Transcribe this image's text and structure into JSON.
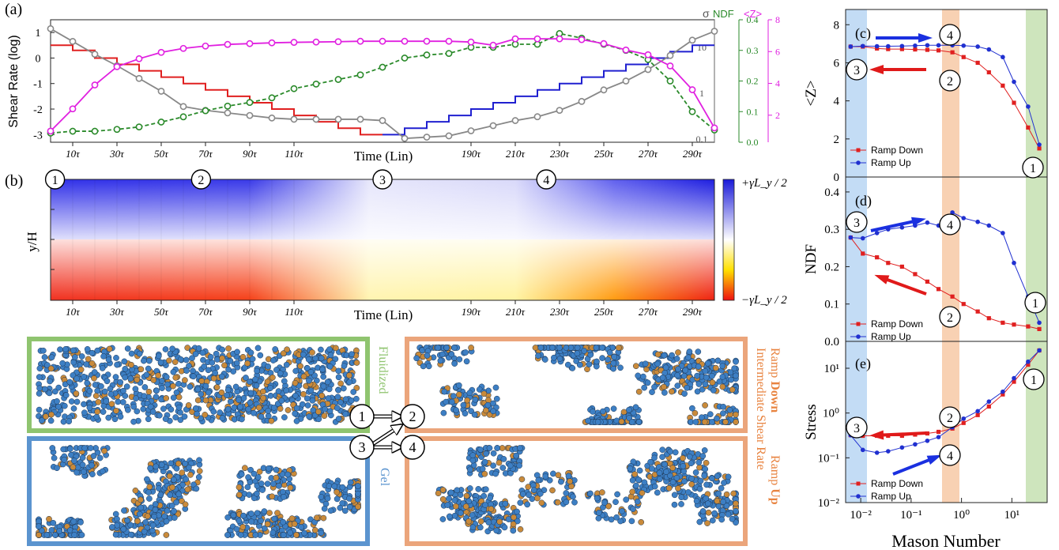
{
  "panel_a": {
    "tag": "(a)",
    "ylabel_left": "Shear Rate (log)",
    "right_axes": {
      "sigma_label": "σ",
      "ndf_label": "NDF",
      "z_label": "<Z>"
    },
    "left_ticks": [
      "1",
      "0",
      "-1",
      "-2",
      "-3"
    ],
    "sigma_ticks": [
      "10",
      "1",
      "0.1"
    ],
    "ndf_ticks": [
      "0.4",
      "0.3",
      "0.2",
      "0.1",
      "0.0"
    ],
    "z_ticks": [
      "8",
      "6",
      "4",
      "2"
    ],
    "xlabel": "Time (Lin)",
    "xticks": [
      "10τ",
      "30τ",
      "50τ",
      "70τ",
      "90τ",
      "110τ",
      "190τ",
      "210τ",
      "230τ",
      "250τ",
      "270τ",
      "290τ"
    ]
  },
  "panel_b": {
    "tag": "(b)",
    "ylabel": "y/H",
    "xlabel": "Time (Lin)",
    "xticks": [
      "10τ",
      "30τ",
      "50τ",
      "70τ",
      "90τ",
      "110τ",
      "190τ",
      "210τ",
      "230τ",
      "250τ",
      "270τ",
      "290τ"
    ],
    "colorbar_top": "+γ̇L_y / 2",
    "colorbar_bottom": "−γ̇L_y / 2",
    "markers": [
      "1",
      "2",
      "3",
      "4"
    ]
  },
  "snapshots": {
    "fluidized": "Fluidized",
    "gel": "Gel",
    "intermediate": "Intermediate Shear Rate",
    "ramp_down_prefix": "Ramp ",
    "ramp_down_bold": "Down",
    "ramp_up_prefix": "Ramp ",
    "ramp_up_bold": "Up",
    "flow": [
      "1",
      "2",
      "3",
      "4"
    ],
    "colors": {
      "green": "#8fc46f",
      "blue": "#5b94cf",
      "orange": "#eba57b"
    }
  },
  "chart_data": [
    {
      "type": "line",
      "panel": "(a)",
      "xlabel": "Time (Lin)",
      "ylabel": "Shear Rate (log)",
      "xlim": [
        0,
        300
      ],
      "series": [
        {
          "name": "shear_rate",
          "color": "#e02020",
          "x": [
            0,
            10,
            20,
            30,
            40,
            50,
            60,
            70,
            80,
            90,
            100,
            110,
            120,
            130,
            140,
            150
          ],
          "values": [
            0.5,
            0.3,
            0.0,
            -0.25,
            -0.5,
            -0.75,
            -1.0,
            -1.25,
            -1.5,
            -1.75,
            -2.0,
            -2.25,
            -2.5,
            -2.75,
            -3.0,
            -3.0
          ]
        },
        {
          "name": "shear_rate_up",
          "color": "#2020d0",
          "x": [
            150,
            160,
            170,
            180,
            190,
            200,
            210,
            220,
            230,
            240,
            250,
            260,
            270,
            280,
            290,
            300
          ],
          "values": [
            -3.0,
            -2.75,
            -2.5,
            -2.25,
            -2.0,
            -1.75,
            -1.5,
            -1.25,
            -1.0,
            -0.75,
            -0.5,
            -0.25,
            0.0,
            0.25,
            0.5,
            0.75
          ]
        },
        {
          "name": "sigma",
          "color": "#888888",
          "x": [
            0,
            10,
            20,
            30,
            40,
            50,
            60,
            70,
            80,
            90,
            100,
            110,
            120,
            130,
            140,
            150,
            160,
            170,
            180,
            190,
            200,
            210,
            220,
            230,
            240,
            250,
            260,
            270,
            280,
            290,
            300
          ],
          "values": [
            1.15,
            0.65,
            0.15,
            -0.3,
            -0.8,
            -1.3,
            -1.9,
            -2.05,
            -2.15,
            -2.25,
            -2.35,
            -2.4,
            -2.4,
            -2.4,
            -2.4,
            -2.45,
            -3.15,
            -3.1,
            -3.05,
            -2.85,
            -2.65,
            -2.45,
            -2.3,
            -2.05,
            -1.7,
            -1.25,
            -0.9,
            -0.45,
            0.1,
            0.7,
            1.05
          ]
        },
        {
          "name": "NDF",
          "color": "#2a8a2a",
          "x": [
            0,
            10,
            20,
            30,
            40,
            50,
            60,
            70,
            80,
            90,
            100,
            110,
            120,
            130,
            140,
            150,
            160,
            170,
            180,
            190,
            200,
            210,
            220,
            230,
            240,
            250,
            260,
            270,
            280,
            290,
            300
          ],
          "values": [
            0.03,
            0.036,
            0.036,
            0.042,
            0.05,
            0.066,
            0.083,
            0.103,
            0.118,
            0.13,
            0.145,
            0.175,
            0.19,
            0.205,
            0.22,
            0.245,
            0.275,
            0.285,
            0.29,
            0.31,
            0.31,
            0.32,
            0.32,
            0.355,
            0.34,
            0.32,
            0.3,
            0.27,
            0.2,
            0.1,
            0.04
          ]
        },
        {
          "name": "<Z>",
          "color": "#e020e0",
          "x": [
            0,
            10,
            20,
            30,
            40,
            50,
            60,
            70,
            80,
            90,
            100,
            110,
            120,
            130,
            140,
            150,
            160,
            170,
            180,
            190,
            200,
            210,
            220,
            230,
            240,
            250,
            260,
            270,
            280,
            290,
            300
          ],
          "values": [
            1.0,
            2.4,
            3.9,
            5.05,
            5.55,
            5.95,
            6.2,
            6.35,
            6.45,
            6.5,
            6.55,
            6.58,
            6.6,
            6.62,
            6.65,
            6.65,
            6.65,
            6.65,
            6.65,
            6.6,
            6.4,
            6.8,
            6.8,
            6.8,
            6.75,
            6.5,
            6.1,
            5.8,
            5.1,
            3.6,
            1.2
          ]
        }
      ]
    },
    {
      "type": "line",
      "panel": "(c)",
      "ylabel": "<Z>",
      "ylim": [
        0,
        8
      ],
      "xlog": true,
      "series": [
        {
          "name": "Ramp Down",
          "color": "#e02020",
          "x": [
            0.0063,
            0.011,
            0.021,
            0.035,
            0.066,
            0.12,
            0.21,
            0.35,
            0.66,
            1.1,
            2.1,
            3.5,
            6.6,
            11,
            21,
            35
          ],
          "values": [
            6.85,
            6.85,
            6.75,
            6.72,
            6.72,
            6.7,
            6.68,
            6.65,
            6.55,
            6.3,
            6.0,
            5.5,
            4.8,
            3.9,
            2.6,
            1.5
          ]
        },
        {
          "name": "Ramp Up",
          "color": "#2030d0",
          "x": [
            0.0063,
            0.011,
            0.021,
            0.035,
            0.066,
            0.12,
            0.21,
            0.35,
            0.66,
            1.1,
            2.1,
            3.5,
            6.6,
            11,
            21,
            35
          ],
          "values": [
            6.85,
            6.88,
            6.87,
            6.87,
            6.88,
            6.9,
            6.92,
            6.92,
            6.92,
            6.9,
            6.85,
            6.7,
            6.3,
            5.0,
            3.7,
            1.7
          ]
        }
      ]
    },
    {
      "type": "line",
      "panel": "(d)",
      "ylabel": "NDF",
      "ylim": [
        0,
        0.45
      ],
      "xlog": true,
      "series": [
        {
          "name": "Ramp Down",
          "color": "#e02020",
          "x": [
            0.0063,
            0.011,
            0.021,
            0.035,
            0.066,
            0.12,
            0.21,
            0.35,
            0.66,
            1.1,
            2.1,
            3.5,
            6.6,
            11,
            21,
            35
          ],
          "values": [
            0.278,
            0.235,
            0.225,
            0.21,
            0.2,
            0.18,
            0.16,
            0.14,
            0.12,
            0.1,
            0.08,
            0.062,
            0.05,
            0.045,
            0.04,
            0.033
          ]
        },
        {
          "name": "Ramp Up",
          "color": "#2030d0",
          "x": [
            0.0063,
            0.011,
            0.021,
            0.035,
            0.066,
            0.12,
            0.21,
            0.35,
            0.66,
            1.1,
            2.1,
            3.5,
            6.6,
            11,
            21,
            35
          ],
          "values": [
            0.278,
            0.276,
            0.29,
            0.3,
            0.305,
            0.31,
            0.318,
            0.31,
            0.345,
            0.33,
            0.32,
            0.31,
            0.29,
            0.21,
            0.12,
            0.05
          ]
        }
      ]
    },
    {
      "type": "line",
      "panel": "(e)",
      "ylabel": "Stress",
      "xlabel": "Mason Number",
      "ylog": true,
      "xlog": true,
      "series": [
        {
          "name": "Ramp Down",
          "color": "#e02020",
          "x": [
            0.0063,
            0.011,
            0.021,
            0.035,
            0.066,
            0.12,
            0.21,
            0.35,
            0.66,
            1.1,
            2.1,
            3.5,
            6.6,
            11,
            21,
            35
          ],
          "values": [
            0.32,
            0.31,
            0.31,
            0.31,
            0.31,
            0.33,
            0.35,
            0.38,
            0.45,
            0.6,
            0.9,
            1.4,
            2.6,
            5,
            12,
            25
          ]
        },
        {
          "name": "Ramp Up",
          "color": "#2030d0",
          "x": [
            0.0063,
            0.011,
            0.021,
            0.035,
            0.066,
            0.12,
            0.21,
            0.35,
            0.66,
            1.1,
            2.1,
            3.5,
            6.6,
            11,
            21,
            35
          ],
          "values": [
            0.32,
            0.15,
            0.13,
            0.14,
            0.17,
            0.2,
            0.24,
            0.29,
            0.48,
            0.75,
            1.1,
            1.8,
            3,
            6,
            14,
            25
          ]
        }
      ]
    }
  ],
  "right_panels": {
    "tags": [
      "(c)",
      "(d)",
      "(e)"
    ],
    "legend_down": "Ramp Down",
    "legend_up": "Ramp Up",
    "c_yticks": [
      "8",
      "6",
      "4",
      "2",
      "0"
    ],
    "d_yticks": [
      "0.4",
      "0.3",
      "0.2",
      "0.1",
      "0.0"
    ],
    "e_yticks": [
      "10¹",
      "10⁰",
      "10⁻¹",
      "10⁻²"
    ],
    "xticks": [
      "10⁻²",
      "10⁻¹",
      "10⁰",
      "10¹"
    ],
    "xlabel": "Mason Number"
  }
}
